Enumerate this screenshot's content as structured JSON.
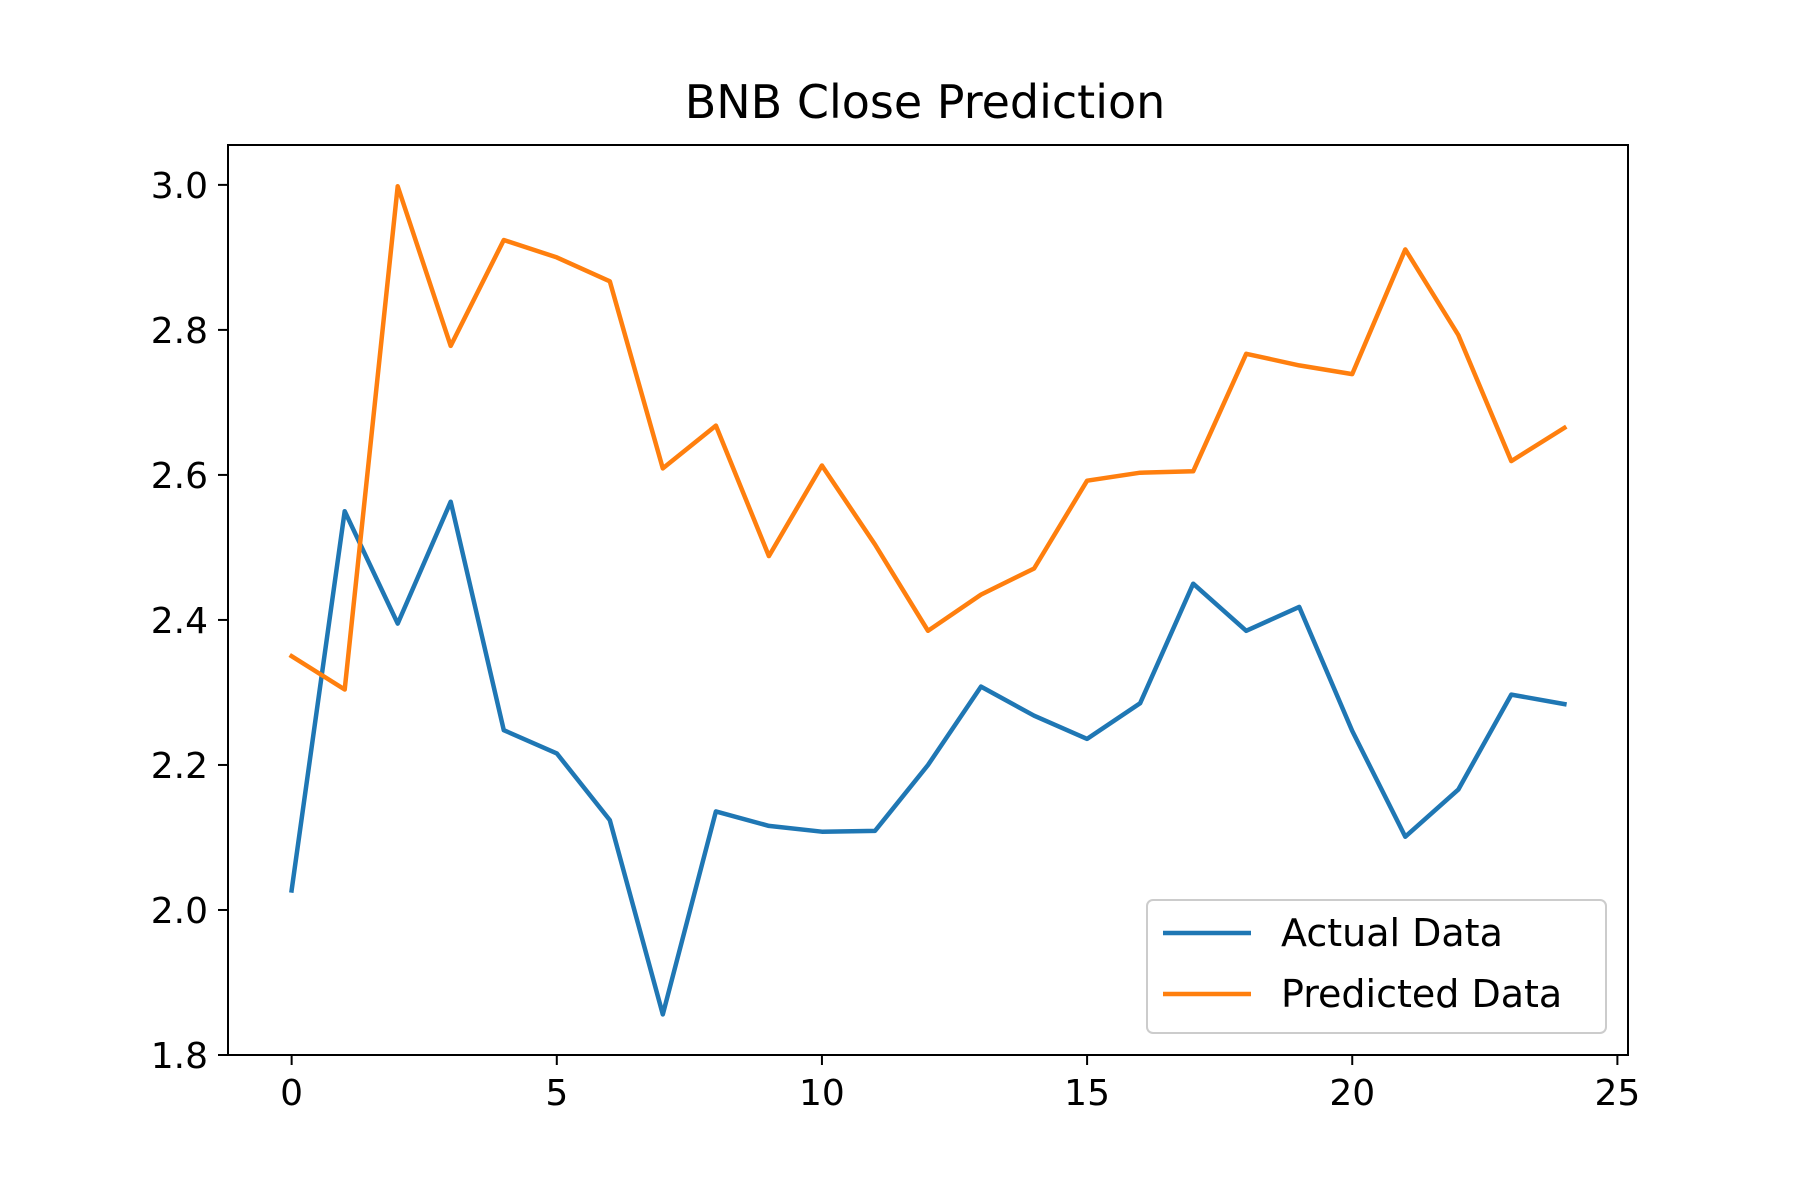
{
  "chart_data": {
    "type": "line",
    "title": "BNB Close Prediction",
    "xlabel": "",
    "ylabel": "",
    "xlim": [
      -1.2,
      25.2
    ],
    "ylim": [
      1.8,
      3.055
    ],
    "x_ticks": [
      0,
      5,
      10,
      15,
      20,
      25
    ],
    "y_ticks": [
      1.8,
      2.0,
      2.2,
      2.4,
      2.6,
      2.8,
      3.0
    ],
    "x_tick_labels": [
      "0",
      "5",
      "10",
      "15",
      "20",
      "25"
    ],
    "y_tick_labels": [
      "1.8",
      "2.0",
      "2.2",
      "2.4",
      "2.6",
      "2.8",
      "3.0"
    ],
    "grid": false,
    "legend_position": "lower-right",
    "x": [
      0,
      1,
      2,
      3,
      4,
      5,
      6,
      7,
      8,
      9,
      10,
      11,
      12,
      13,
      14,
      15,
      16,
      17,
      18,
      19,
      20,
      21,
      22,
      23,
      24
    ],
    "series": [
      {
        "name": "Actual Data",
        "color": "#1f77b4",
        "values": [
          2.027,
          2.55,
          2.395,
          2.563,
          2.248,
          2.216,
          2.124,
          1.856,
          2.136,
          2.116,
          2.108,
          2.109,
          2.2,
          2.308,
          2.268,
          2.236,
          2.285,
          2.45,
          2.385,
          2.418,
          2.247,
          2.101,
          2.166,
          2.297,
          2.284
        ]
      },
      {
        "name": "Predicted Data",
        "color": "#ff7f0e",
        "values": [
          2.35,
          2.304,
          2.998,
          2.778,
          2.924,
          2.9,
          2.867,
          2.609,
          2.668,
          2.488,
          2.613,
          2.504,
          2.385,
          2.435,
          2.471,
          2.592,
          2.603,
          2.605,
          2.767,
          2.751,
          2.739,
          2.911,
          2.793,
          2.619,
          2.665
        ]
      }
    ]
  }
}
